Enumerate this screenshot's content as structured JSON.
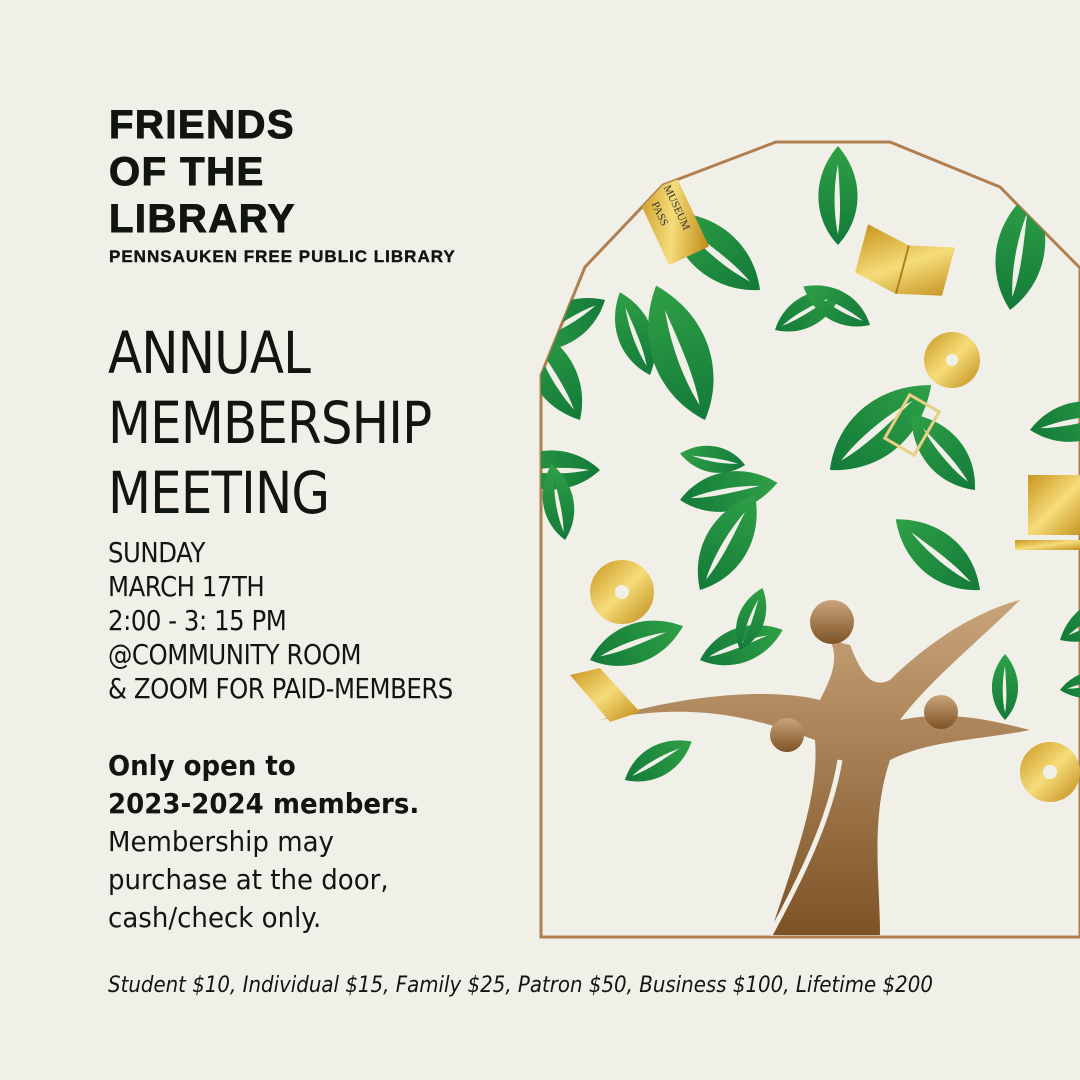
{
  "header": {
    "org_lines": [
      "FRIENDS",
      "OF THE",
      "LIBRARY"
    ],
    "library_name": "PENNSAUKEN FREE PUBLIC LIBRARY"
  },
  "event": {
    "title_lines": [
      "ANNUAL",
      "MEMBERSHIP",
      "MEETING"
    ],
    "details": [
      "SUNDAY",
      "MARCH 17TH",
      "2:00 - 3: 15 PM",
      "@COMMUNITY ROOM",
      "& ZOOM FOR PAID-MEMBERS"
    ]
  },
  "notice": {
    "bold_lines": [
      "Only open to",
      "2023-2024 members."
    ],
    "lines": [
      "Membership may",
      "purchase at the door,",
      "cash/check only."
    ]
  },
  "prices": "Student $10, Individual $15, Family $25, Patron $50, Business $100, Lifetime $200",
  "illustration": {
    "ticket_text": [
      "MUSEUM",
      "PASS"
    ],
    "colors": {
      "background": "#f1f0e8",
      "frame": "#b07f4f",
      "leaf": "#1f8a3c",
      "gold": "#d9aa2a",
      "trunk": "#a77a4c"
    }
  }
}
